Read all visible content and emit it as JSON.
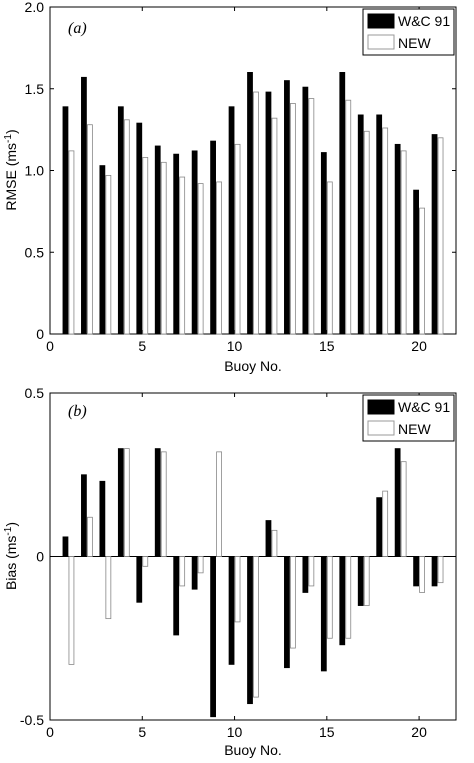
{
  "chart_data": [
    {
      "type": "bar",
      "panel_label": "(a)",
      "xlabel": "Buoy No.",
      "ylabel": "RMSE (ms",
      "ylabel_sup": "-1",
      "ylabel_close": ")",
      "xlim": [
        0,
        22
      ],
      "ylim": [
        0,
        2
      ],
      "xticks": [
        "0",
        "5",
        "10",
        "15",
        "20"
      ],
      "xtick_values": [
        0,
        5,
        10,
        15,
        20
      ],
      "yticks": [
        "0",
        "0.5",
        "1.0",
        "1.5",
        "2.0"
      ],
      "ytick_values": [
        0,
        0.5,
        1.0,
        1.5,
        2.0
      ],
      "legend_position": "top-right",
      "grid": false,
      "x": [
        1,
        2,
        3,
        4,
        5,
        6,
        7,
        8,
        9,
        10,
        11,
        12,
        13,
        14,
        15,
        16,
        17,
        18,
        19,
        20,
        21
      ],
      "series": [
        {
          "name": "W&C 91",
          "color": "#000000",
          "values": [
            1.39,
            1.57,
            1.03,
            1.39,
            1.29,
            1.15,
            1.1,
            1.12,
            1.18,
            1.39,
            1.6,
            1.48,
            1.55,
            1.51,
            1.11,
            1.6,
            1.34,
            1.34,
            1.16,
            0.88,
            1.22
          ]
        },
        {
          "name": "NEW",
          "color": "#ffffff",
          "values": [
            1.12,
            1.28,
            0.97,
            1.31,
            1.08,
            1.05,
            0.96,
            0.92,
            0.93,
            1.16,
            1.48,
            1.32,
            1.41,
            1.44,
            0.93,
            1.43,
            1.24,
            1.26,
            1.12,
            0.77,
            1.2
          ]
        }
      ]
    },
    {
      "type": "bar",
      "panel_label": "(b)",
      "xlabel": "Buoy No.",
      "ylabel": "Bias (ms",
      "ylabel_sup": "-1",
      "ylabel_close": ")",
      "xlim": [
        0,
        22
      ],
      "ylim": [
        -0.5,
        0.5
      ],
      "xticks": [
        "0",
        "5",
        "10",
        "15",
        "20"
      ],
      "xtick_values": [
        0,
        5,
        10,
        15,
        20
      ],
      "yticks": [
        "-0.5",
        "0",
        "0.5"
      ],
      "ytick_values": [
        -0.5,
        0,
        0.5
      ],
      "legend_position": "top-right",
      "grid": false,
      "x": [
        1,
        2,
        3,
        4,
        5,
        6,
        7,
        8,
        9,
        10,
        11,
        12,
        13,
        14,
        15,
        16,
        17,
        18,
        19,
        20,
        21
      ],
      "series": [
        {
          "name": "W&C 91",
          "color": "#000000",
          "values": [
            0.06,
            0.25,
            0.23,
            0.33,
            -0.14,
            0.33,
            -0.24,
            -0.1,
            -0.49,
            -0.33,
            -0.45,
            0.11,
            -0.34,
            -0.11,
            -0.35,
            -0.27,
            -0.15,
            0.18,
            0.33,
            -0.09,
            -0.09
          ]
        },
        {
          "name": "NEW",
          "color": "#ffffff",
          "values": [
            -0.33,
            0.12,
            -0.19,
            0.33,
            -0.03,
            0.32,
            -0.09,
            -0.05,
            0.32,
            -0.2,
            -0.43,
            0.08,
            -0.28,
            -0.09,
            -0.25,
            -0.25,
            -0.15,
            0.2,
            0.29,
            -0.11,
            -0.08
          ]
        }
      ]
    }
  ]
}
